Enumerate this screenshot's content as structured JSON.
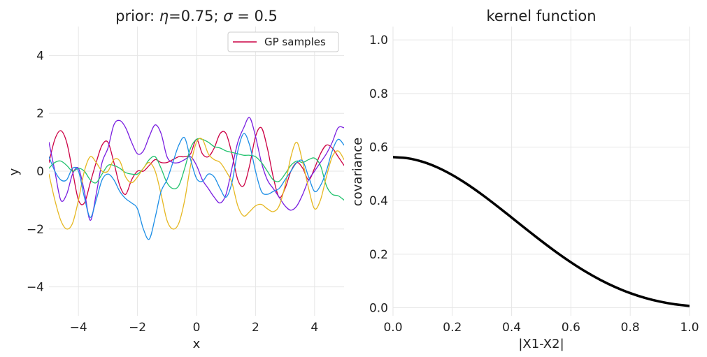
{
  "chart_data": [
    {
      "type": "line",
      "title": "prior: η=0.75; σ = 0.5",
      "title_parts": {
        "prefix": "prior: ",
        "eta_symbol": "η",
        "eta_value": "=0.75; ",
        "sigma_symbol": "σ",
        "sigma_value": " = 0.5"
      },
      "xlabel": "x",
      "ylabel": "y",
      "xlim": [
        -5,
        5
      ],
      "ylim": [
        -5,
        5
      ],
      "xticks": [
        -4,
        -2,
        0,
        2,
        4
      ],
      "xtick_labels": [
        "−4",
        "−2",
        "0",
        "2",
        "4"
      ],
      "yticks": [
        -4,
        -2,
        0,
        2,
        4
      ],
      "ytick_labels": [
        "−4",
        "−2",
        "0",
        "2",
        "4"
      ],
      "grid": true,
      "legend": {
        "placement": "top-right",
        "label": "GP samples",
        "color": "#cc0044"
      },
      "series": [
        {
          "name": "sample-crimson",
          "color": "#cc0044",
          "x": [
            -5,
            -4.8,
            -4.6,
            -4.4,
            -4.2,
            -4.0,
            -3.8,
            -3.6,
            -3.4,
            -3.2,
            -3.0,
            -2.8,
            -2.6,
            -2.4,
            -2.2,
            -2.0,
            -1.8,
            -1.6,
            -1.4,
            -1.2,
            -1.0,
            -0.8,
            -0.6,
            -0.4,
            -0.2,
            0.0,
            0.2,
            0.4,
            0.6,
            0.8,
            1.0,
            1.2,
            1.4,
            1.6,
            1.8,
            2.0,
            2.2,
            2.4,
            2.6,
            2.8,
            3.0,
            3.2,
            3.4,
            3.6,
            3.8,
            4.0,
            4.2,
            4.4,
            4.6,
            4.8,
            5.0
          ],
          "y": [
            0.3,
            1.1,
            1.4,
            1.0,
            0.0,
            -1.0,
            -1.1,
            -0.4,
            0.3,
            0.9,
            1.0,
            0.3,
            -0.5,
            -0.8,
            -0.3,
            0.0,
            0.0,
            0.2,
            0.4,
            0.3,
            0.3,
            0.4,
            0.5,
            0.5,
            0.6,
            1.1,
            0.6,
            0.5,
            0.8,
            1.3,
            1.3,
            0.6,
            -0.3,
            -0.5,
            0.2,
            1.2,
            1.5,
            0.8,
            -0.2,
            -0.9,
            -0.6,
            0.0,
            0.3,
            0.1,
            -0.3,
            0.1,
            0.6,
            0.9,
            0.8,
            0.5,
            0.2
          ]
        },
        {
          "name": "sample-purple",
          "color": "#7a1fe0",
          "x": [
            -5,
            -4.8,
            -4.6,
            -4.4,
            -4.2,
            -4.0,
            -3.8,
            -3.6,
            -3.4,
            -3.2,
            -3.0,
            -2.8,
            -2.6,
            -2.4,
            -2.2,
            -2.0,
            -1.8,
            -1.6,
            -1.4,
            -1.2,
            -1.0,
            -0.8,
            -0.6,
            -0.4,
            -0.2,
            0.0,
            0.2,
            0.4,
            0.6,
            0.8,
            1.0,
            1.2,
            1.4,
            1.6,
            1.8,
            2.0,
            2.2,
            2.4,
            2.6,
            2.8,
            3.0,
            3.2,
            3.4,
            3.6,
            3.8,
            4.0,
            4.2,
            4.4,
            4.6,
            4.8,
            5.0
          ],
          "y": [
            1.0,
            0.0,
            -1.0,
            -0.8,
            -0.1,
            0.1,
            -0.7,
            -1.7,
            -0.8,
            0.3,
            0.8,
            1.6,
            1.75,
            1.5,
            1.0,
            0.6,
            0.7,
            1.2,
            1.6,
            1.3,
            0.5,
            0.3,
            0.3,
            0.4,
            0.5,
            0.2,
            -0.3,
            -0.6,
            -0.9,
            -1.1,
            -0.8,
            0.1,
            1.0,
            1.5,
            1.85,
            1.2,
            0.3,
            -0.3,
            -0.6,
            -0.9,
            -1.2,
            -1.35,
            -1.2,
            -0.8,
            -0.3,
            0.0,
            0.3,
            0.6,
            1.0,
            1.5,
            1.5
          ]
        },
        {
          "name": "sample-green",
          "color": "#22c26e",
          "x": [
            -5,
            -4.8,
            -4.6,
            -4.4,
            -4.2,
            -4.0,
            -3.8,
            -3.6,
            -3.4,
            -3.2,
            -3.0,
            -2.8,
            -2.6,
            -2.4,
            -2.2,
            -2.0,
            -1.8,
            -1.6,
            -1.4,
            -1.2,
            -1.0,
            -0.8,
            -0.6,
            -0.4,
            -0.2,
            0.0,
            0.2,
            0.4,
            0.6,
            0.8,
            1.0,
            1.2,
            1.4,
            1.6,
            1.8,
            2.0,
            2.2,
            2.4,
            2.6,
            2.8,
            3.0,
            3.2,
            3.4,
            3.6,
            3.8,
            4.0,
            4.2,
            4.4,
            4.6,
            4.8,
            5.0
          ],
          "y": [
            0.1,
            0.3,
            0.35,
            0.2,
            0.0,
            0.1,
            0.0,
            -0.3,
            -0.4,
            -0.1,
            0.2,
            0.2,
            0.1,
            -0.05,
            -0.1,
            -0.1,
            0.1,
            0.4,
            0.5,
            0.1,
            -0.4,
            -0.6,
            -0.5,
            0.1,
            0.8,
            1.1,
            1.1,
            1.0,
            0.85,
            0.8,
            0.7,
            0.65,
            0.6,
            0.55,
            0.55,
            0.5,
            0.3,
            0.0,
            -0.3,
            -0.35,
            -0.1,
            0.2,
            0.35,
            0.3,
            0.4,
            0.45,
            0.2,
            -0.5,
            -0.8,
            -0.85,
            -1.0
          ]
        },
        {
          "name": "sample-yellow",
          "color": "#e6b822",
          "x": [
            -5,
            -4.8,
            -4.6,
            -4.4,
            -4.2,
            -4.0,
            -3.8,
            -3.6,
            -3.4,
            -3.2,
            -3.0,
            -2.8,
            -2.6,
            -2.4,
            -2.2,
            -2.0,
            -1.8,
            -1.6,
            -1.4,
            -1.2,
            -1.0,
            -0.8,
            -0.6,
            -0.4,
            -0.2,
            0.0,
            0.2,
            0.4,
            0.6,
            0.8,
            1.0,
            1.2,
            1.4,
            1.6,
            1.8,
            2.0,
            2.2,
            2.4,
            2.6,
            2.8,
            3.0,
            3.2,
            3.4,
            3.6,
            3.8,
            4.0,
            4.2,
            4.4,
            4.6,
            4.8,
            5.0
          ],
          "y": [
            -0.1,
            -1.0,
            -1.7,
            -2.0,
            -1.8,
            -1.0,
            0.0,
            0.5,
            0.3,
            0.0,
            0.0,
            0.4,
            0.35,
            -0.2,
            -0.4,
            -0.2,
            0.1,
            0.3,
            0.0,
            -0.8,
            -1.7,
            -2.0,
            -1.8,
            -1.0,
            0.2,
            1.0,
            1.1,
            0.6,
            0.4,
            0.3,
            0.0,
            -0.4,
            -1.2,
            -1.55,
            -1.4,
            -1.2,
            -1.15,
            -1.3,
            -1.4,
            -1.2,
            -0.5,
            0.5,
            1.0,
            0.3,
            -0.6,
            -1.3,
            -1.0,
            -0.2,
            0.5,
            0.7,
            0.4
          ]
        },
        {
          "name": "sample-blue",
          "color": "#1c8ee6",
          "x": [
            -5,
            -4.8,
            -4.6,
            -4.4,
            -4.2,
            -4.0,
            -3.8,
            -3.6,
            -3.4,
            -3.2,
            -3.0,
            -2.8,
            -2.6,
            -2.4,
            -2.2,
            -2.0,
            -1.8,
            -1.6,
            -1.4,
            -1.2,
            -1.0,
            -0.8,
            -0.6,
            -0.4,
            -0.2,
            0.0,
            0.2,
            0.4,
            0.6,
            0.8,
            1.0,
            1.2,
            1.4,
            1.6,
            1.8,
            2.0,
            2.2,
            2.4,
            2.6,
            2.8,
            3.0,
            3.2,
            3.4,
            3.6,
            3.8,
            4.0,
            4.2,
            4.4,
            4.6,
            4.8,
            5.0
          ],
          "y": [
            0.5,
            0.0,
            -0.3,
            -0.3,
            0.1,
            0.0,
            -0.9,
            -1.6,
            -1.0,
            -0.3,
            -0.1,
            -0.3,
            -0.7,
            -0.95,
            -1.1,
            -1.3,
            -2.0,
            -2.35,
            -1.6,
            -0.7,
            -0.3,
            0.3,
            0.9,
            1.15,
            0.4,
            -0.25,
            -0.35,
            -0.1,
            -0.2,
            -0.6,
            -0.9,
            -0.4,
            0.7,
            1.3,
            0.9,
            0.0,
            -0.7,
            -0.8,
            -0.7,
            -0.6,
            -0.3,
            0.0,
            0.3,
            0.35,
            -0.2,
            -0.7,
            -0.5,
            0.0,
            0.7,
            1.1,
            0.9
          ]
        }
      ]
    },
    {
      "type": "line",
      "title": "kernel function",
      "xlabel": "|X1-X2|",
      "ylabel": "covariance",
      "xlim": [
        0.0,
        1.0
      ],
      "ylim": [
        -0.03,
        1.05
      ],
      "xticks": [
        0.0,
        0.2,
        0.4,
        0.6,
        0.8,
        1.0
      ],
      "xtick_labels": [
        "0.0",
        "0.2",
        "0.4",
        "0.6",
        "0.8",
        "1.0"
      ],
      "yticks": [
        0.0,
        0.2,
        0.4,
        0.6,
        0.8,
        1.0
      ],
      "ytick_labels": [
        "0.0",
        "0.2",
        "0.4",
        "0.6",
        "0.8",
        "1.0"
      ],
      "grid": true,
      "series": [
        {
          "name": "kernel",
          "color": "#000000",
          "x": [
            0.0,
            0.05,
            0.1,
            0.15,
            0.2,
            0.25,
            0.3,
            0.35,
            0.4,
            0.45,
            0.5,
            0.55,
            0.6,
            0.65,
            0.7,
            0.75,
            0.8,
            0.85,
            0.9,
            0.95,
            1.0
          ],
          "y": [
            0.5625,
            0.5581,
            0.545,
            0.5239,
            0.4956,
            0.4614,
            0.4226,
            0.3806,
            0.3369,
            0.2928,
            0.2496,
            0.2082,
            0.1697,
            0.1346,
            0.1036,
            0.0769,
            0.0546,
            0.0367,
            0.0229,
            0.013,
            0.0068
          ]
        }
      ]
    }
  ]
}
